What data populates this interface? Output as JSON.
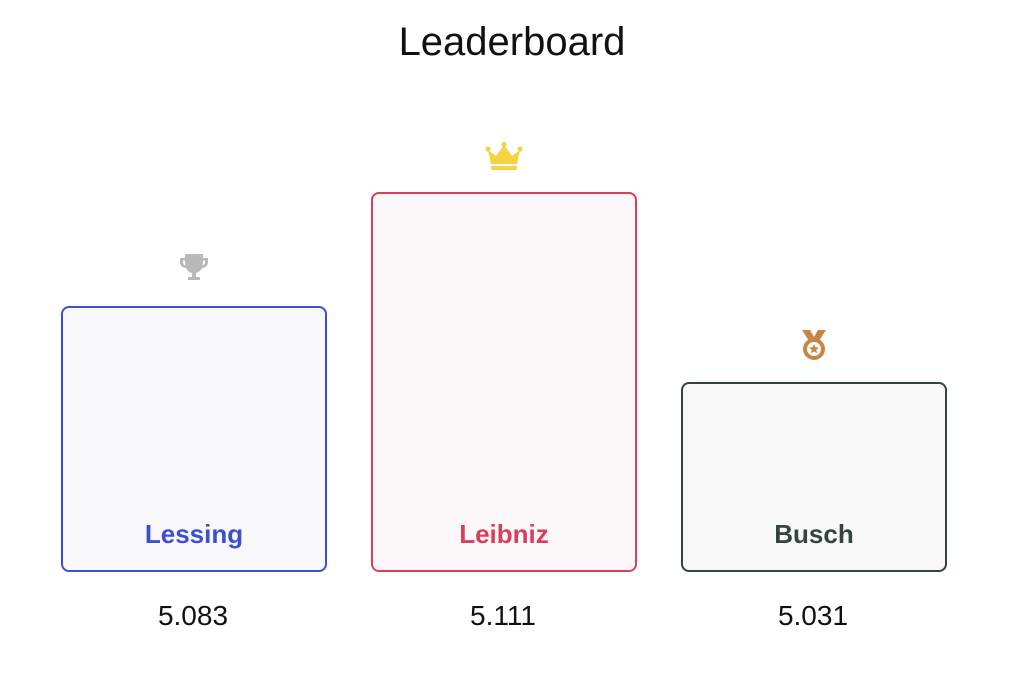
{
  "page": {
    "title": "Leaderboard"
  },
  "entries": [
    {
      "rank": 2,
      "name": "Lessing",
      "score": "5.083",
      "icon": "trophy-icon",
      "border_color": "#3b4fd0",
      "text_color": "#3b4fd0"
    },
    {
      "rank": 1,
      "name": "Leibniz",
      "score": "5.111",
      "icon": "crown-icon",
      "border_color": "#d83f5c",
      "text_color": "#d83f5c"
    },
    {
      "rank": 3,
      "name": "Busch",
      "score": "5.031",
      "icon": "medal-icon",
      "border_color": "#34443f",
      "text_color": "#34443f"
    }
  ],
  "colors": {
    "crown": "#f5d442",
    "trophy": "#b9b9b9",
    "medal": "#c98543"
  }
}
